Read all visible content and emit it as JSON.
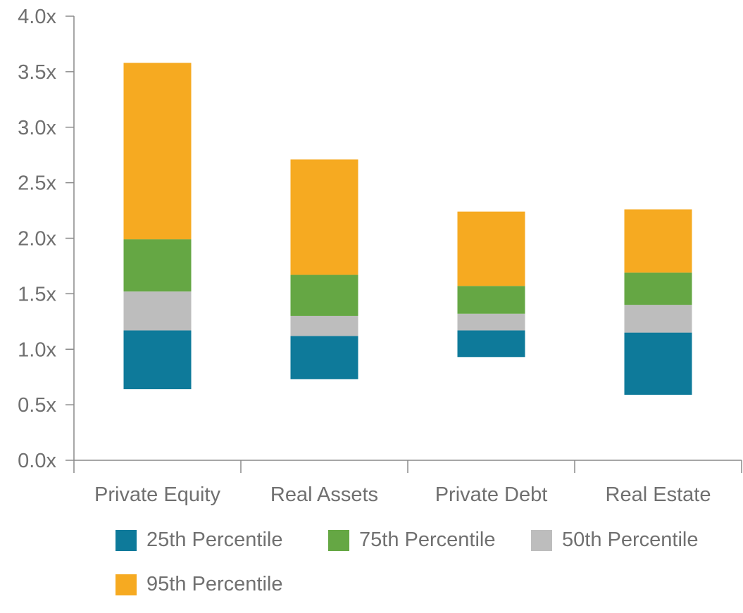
{
  "chart_data": {
    "type": "bar",
    "stacked": "floating-range",
    "categories": [
      "Private Equity",
      "Real Assets",
      "Private Debt",
      "Real Estate"
    ],
    "bottoms": [
      0.64,
      0.73,
      0.93,
      0.59
    ],
    "series": [
      {
        "name": "25th Percentile",
        "color": "#0e7a9a",
        "tops": [
          1.17,
          1.12,
          1.17,
          1.15
        ]
      },
      {
        "name": "50th Percentile",
        "color": "#bdbdbd",
        "tops": [
          1.52,
          1.3,
          1.32,
          1.4
        ]
      },
      {
        "name": "75th Percentile",
        "color": "#65a744",
        "tops": [
          1.99,
          1.67,
          1.57,
          1.69
        ]
      },
      {
        "name": "95th Percentile",
        "color": "#f6aa21",
        "tops": [
          3.58,
          2.71,
          2.24,
          2.26
        ]
      }
    ],
    "yticks": [
      "0.0x",
      "0.5x",
      "1.0x",
      "1.5x",
      "2.0x",
      "2.5x",
      "3.0x",
      "3.5x",
      "4.0x"
    ],
    "ylim": [
      0,
      4
    ],
    "xlabel": "",
    "ylabel": "",
    "title": ""
  },
  "legend": {
    "items": [
      {
        "label": "25th Percentile",
        "color": "#0e7a9a"
      },
      {
        "label": "75th Percentile",
        "color": "#65a744"
      },
      {
        "label": "50th Percentile",
        "color": "#bdbdbd"
      },
      {
        "label": "95th Percentile",
        "color": "#f6aa21"
      }
    ]
  },
  "axis_color": "#8a8a8a"
}
